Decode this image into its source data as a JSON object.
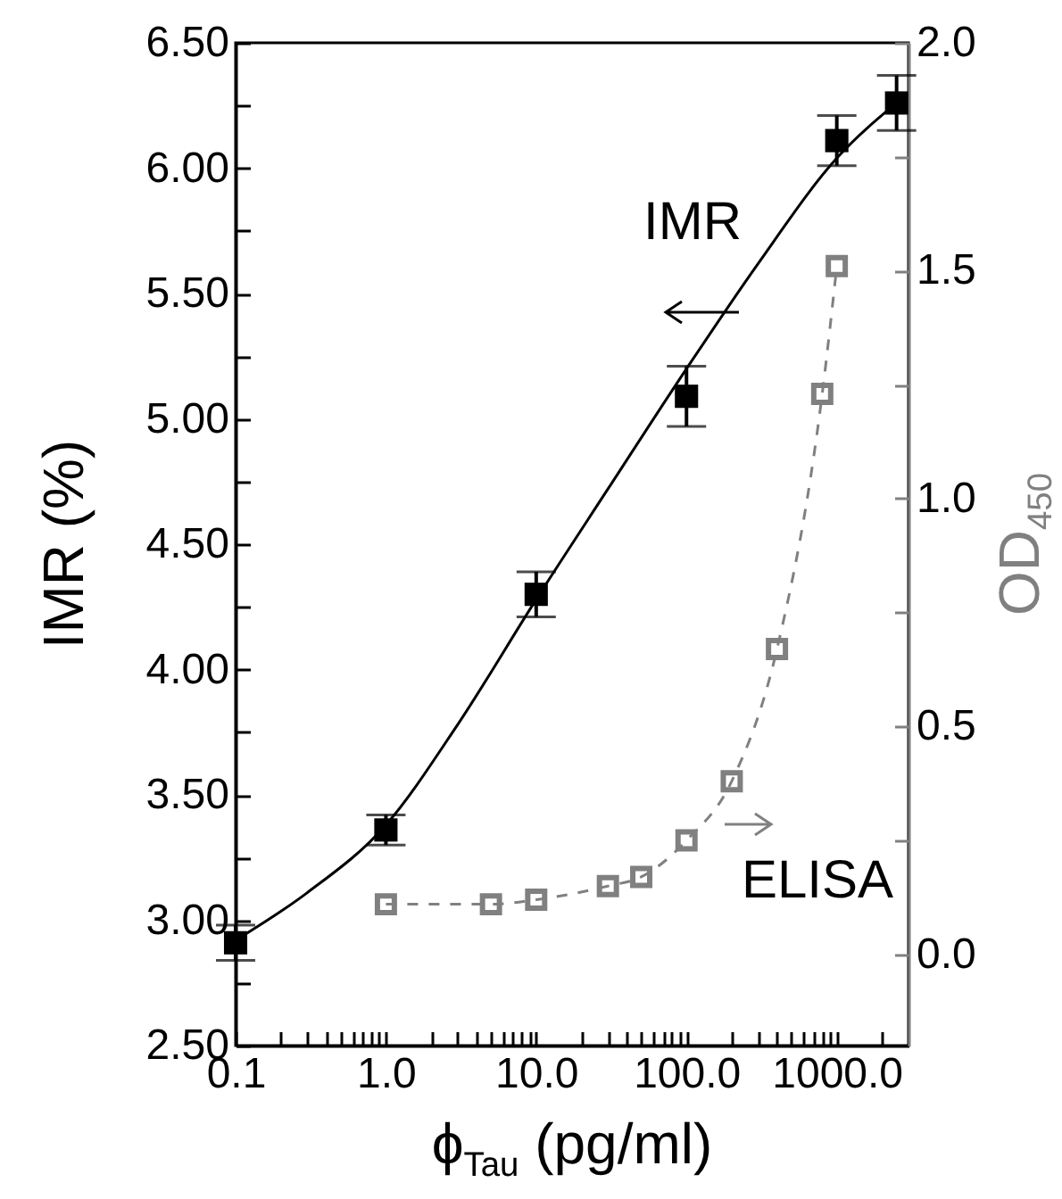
{
  "chart_data": {
    "type": "scatter",
    "xlabel": "ϕ$_{Tau}$ (pg/ml)",
    "ylabel": "IMR (%)",
    "y2label": "OD$_{450}$",
    "log": "x",
    "grid": false,
    "legend": "bottom right",
    "marker": "square",
    "xlim": [
      0.1,
      3000
    ],
    "ylim": [
      2.5,
      6.5
    ],
    "y2lim": [
      -0.2,
      2.0
    ],
    "xticks": [
      {
        "value": 0.1,
        "label": "0.1"
      },
      {
        "value": 0.2,
        "label": null
      },
      {
        "value": 0.3,
        "label": null
      },
      {
        "value": 0.4,
        "label": null
      },
      {
        "value": 0.5,
        "label": null
      },
      {
        "value": 0.6,
        "label": null
      },
      {
        "value": 0.7,
        "label": null
      },
      {
        "value": 0.8,
        "label": null
      },
      {
        "value": 0.9,
        "label": null
      },
      {
        "value": 1,
        "label": "1.0"
      },
      {
        "value": 2,
        "label": null
      },
      {
        "value": 3,
        "label": null
      },
      {
        "value": 4,
        "label": null
      },
      {
        "value": 5,
        "label": null
      },
      {
        "value": 6,
        "label": null
      },
      {
        "value": 7,
        "label": null
      },
      {
        "value": 8,
        "label": null
      },
      {
        "value": 9,
        "label": null
      },
      {
        "value": 10,
        "label": "10.0"
      },
      {
        "value": 20,
        "label": null
      },
      {
        "value": 30,
        "label": null
      },
      {
        "value": 40,
        "label": null
      },
      {
        "value": 50,
        "label": null
      },
      {
        "value": 60,
        "label": null
      },
      {
        "value": 70,
        "label": null
      },
      {
        "value": 80,
        "label": null
      },
      {
        "value": 90,
        "label": null
      },
      {
        "value": 100,
        "label": "100.0"
      },
      {
        "value": 200,
        "label": null
      },
      {
        "value": 300,
        "label": null
      },
      {
        "value": 400,
        "label": null
      },
      {
        "value": 500,
        "label": null
      },
      {
        "value": 600,
        "label": null
      },
      {
        "value": 700,
        "label": null
      },
      {
        "value": 800,
        "label": null
      },
      {
        "value": 900,
        "label": null
      },
      {
        "value": 1000,
        "label": "1000.0"
      },
      {
        "value": 2000,
        "label": null
      }
    ],
    "yticks": [
      {
        "value": 2.5,
        "label": "2.50"
      },
      {
        "value": 2.75,
        "label": null
      },
      {
        "value": 3,
        "label": "3.00"
      },
      {
        "value": 3.25,
        "label": null
      },
      {
        "value": 3.5,
        "label": "3.50"
      },
      {
        "value": 3.75,
        "label": null
      },
      {
        "value": 4,
        "label": "4.00"
      },
      {
        "value": 4.25,
        "label": null
      },
      {
        "value": 4.5,
        "label": "4.50"
      },
      {
        "value": 4.75,
        "label": null
      },
      {
        "value": 5,
        "label": "5.00"
      },
      {
        "value": 5.25,
        "label": null
      },
      {
        "value": 5.5,
        "label": "5.50"
      },
      {
        "value": 5.75,
        "label": null
      },
      {
        "value": 6,
        "label": "6.00"
      },
      {
        "value": 6.25,
        "label": null
      },
      {
        "value": 6.5,
        "label": "6.50"
      }
    ],
    "y2ticks": [
      {
        "value": 0,
        "label": "0.0"
      },
      {
        "value": 0.25,
        "label": null
      },
      {
        "value": 0.5,
        "label": "0.5"
      },
      {
        "value": 0.75,
        "label": null
      },
      {
        "value": 1,
        "label": "1.0"
      },
      {
        "value": 1.25,
        "label": null
      },
      {
        "value": 1.5,
        "label": "1.5"
      },
      {
        "value": 1.75,
        "label": null
      },
      {
        "value": 2,
        "label": "2.0"
      }
    ],
    "series": [
      {
        "name": "IMR",
        "type": "scatter",
        "color": "#000000",
        "x": [
          0.1,
          1,
          10,
          100,
          1000,
          2500
        ],
        "values": [
          2.91,
          3.36,
          4.3,
          5.09,
          6.11,
          6.26
        ],
        "errors": [
          0.07,
          0.06,
          0.09,
          0.12,
          0.1,
          0.11
        ]
      },
      {
        "type": "line",
        "color": "#000000",
        "marker": "none",
        "x": [
          0.1,
          0.3,
          1,
          3,
          10,
          30,
          100,
          300,
          1000,
          2500
        ],
        "values": [
          2.92,
          3.11,
          3.38,
          3.78,
          4.28,
          4.72,
          5.2,
          5.62,
          6.04,
          6.26
        ]
      },
      {
        "name": "ELISA",
        "type": "line",
        "axis": "y2",
        "color": "#808080",
        "line_style": "dashed",
        "x": [
          1,
          5,
          10,
          30,
          50,
          100,
          200,
          400,
          800,
          1000
        ],
        "values": [
          0.11,
          0.11,
          0.12,
          0.15,
          0.17,
          0.25,
          0.38,
          0.67,
          1.23,
          1.51
        ]
      }
    ]
  }
}
